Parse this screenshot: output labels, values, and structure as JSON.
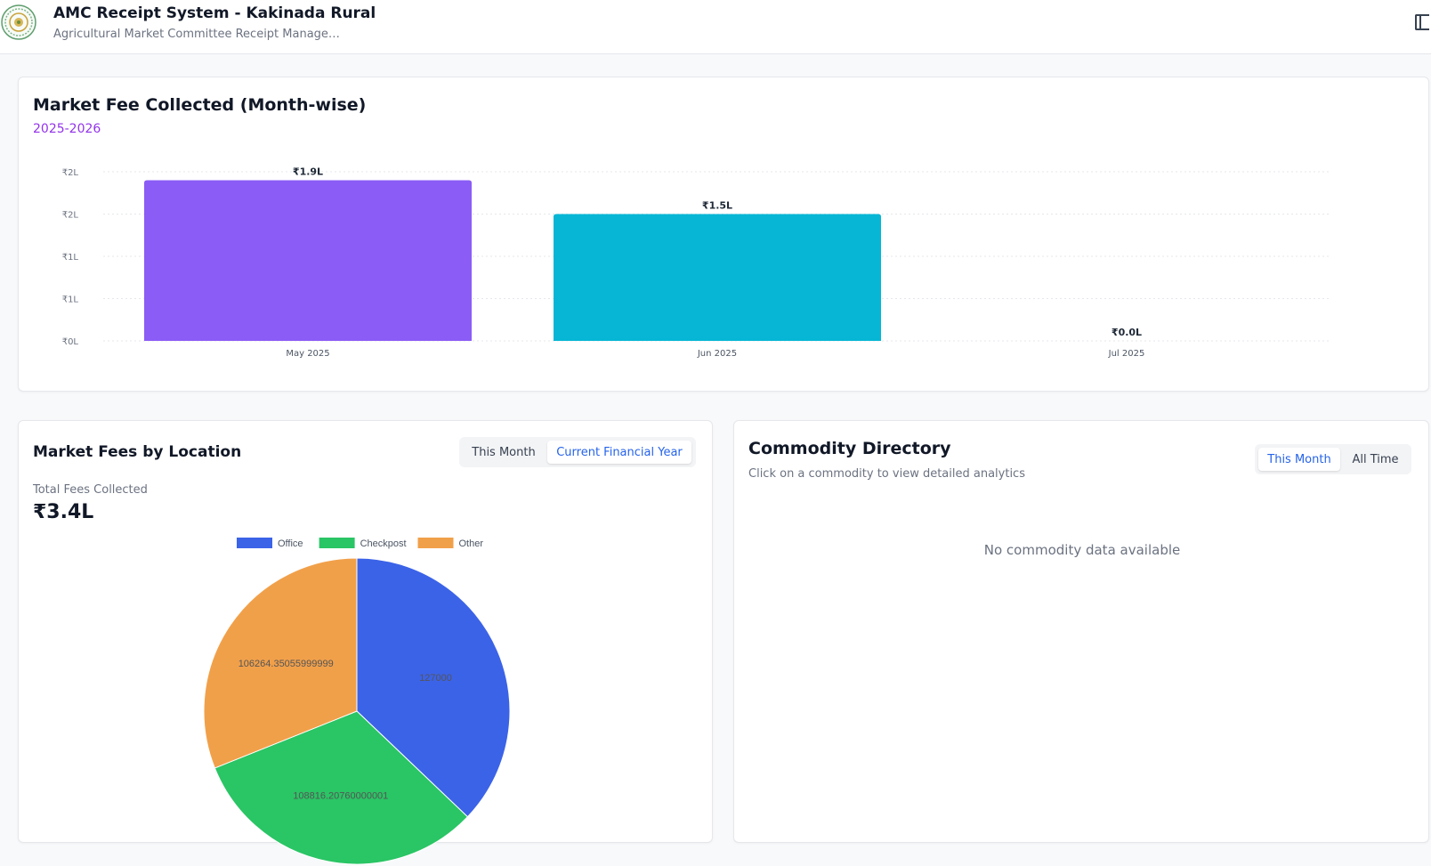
{
  "header": {
    "title": "AMC Receipt System - Kakinada Rural",
    "subtitle": "Agricultural Market Committee Receipt Manage…",
    "logo_icon": "state-emblem-icon",
    "toggle_icon": "sidebar-toggle-icon"
  },
  "monthly_chart": {
    "title": "Market Fee Collected (Month-wise)",
    "subtitle": "2025-2026"
  },
  "location_card": {
    "title": "Market Fees by Location",
    "tabs": [
      {
        "label": "This Month",
        "active": false
      },
      {
        "label": "Current Financial Year",
        "active": true
      }
    ],
    "total_label": "Total Fees Collected",
    "total_value": "₹3.4L"
  },
  "commodity_card": {
    "title": "Commodity Directory",
    "subtitle": "Click on a commodity to view detailed analytics",
    "tabs": [
      {
        "label": "This Month",
        "active": true
      },
      {
        "label": "All Time",
        "active": false
      }
    ],
    "empty_message": "No commodity data available"
  },
  "chart_data": [
    {
      "type": "bar",
      "title": "Market Fee Collected (Month-wise)",
      "subtitle": "2025-2026",
      "categories": [
        "May 2025",
        "Jun 2025",
        "Jul 2025"
      ],
      "values": [
        1.9,
        1.5,
        0.0
      ],
      "value_labels": [
        "₹1.9L",
        "₹1.5L",
        "₹0.0L"
      ],
      "colors": [
        "#8b5cf6",
        "#06b6d4",
        "#f59e0b"
      ],
      "y_ticks": [
        0,
        0.5,
        1.0,
        1.5,
        2.0
      ],
      "y_tick_labels": [
        "₹0L",
        "₹1L",
        "₹1L",
        "₹2L",
        "₹2L"
      ],
      "ylim": [
        0,
        2.0
      ],
      "unit": "lakh INR",
      "grid": true,
      "legend": "none"
    },
    {
      "type": "pie",
      "title": "",
      "labels": [
        "Office",
        "Checkpost",
        "Other"
      ],
      "values": [
        127000,
        108816.20760000001,
        106264.35055999999
      ],
      "value_labels": [
        "127000",
        "108816.20760000001",
        "106264.35055999999"
      ],
      "colors": [
        "#3b63e8",
        "#2ac565",
        "#f1a04a"
      ],
      "legend": "top"
    }
  ]
}
